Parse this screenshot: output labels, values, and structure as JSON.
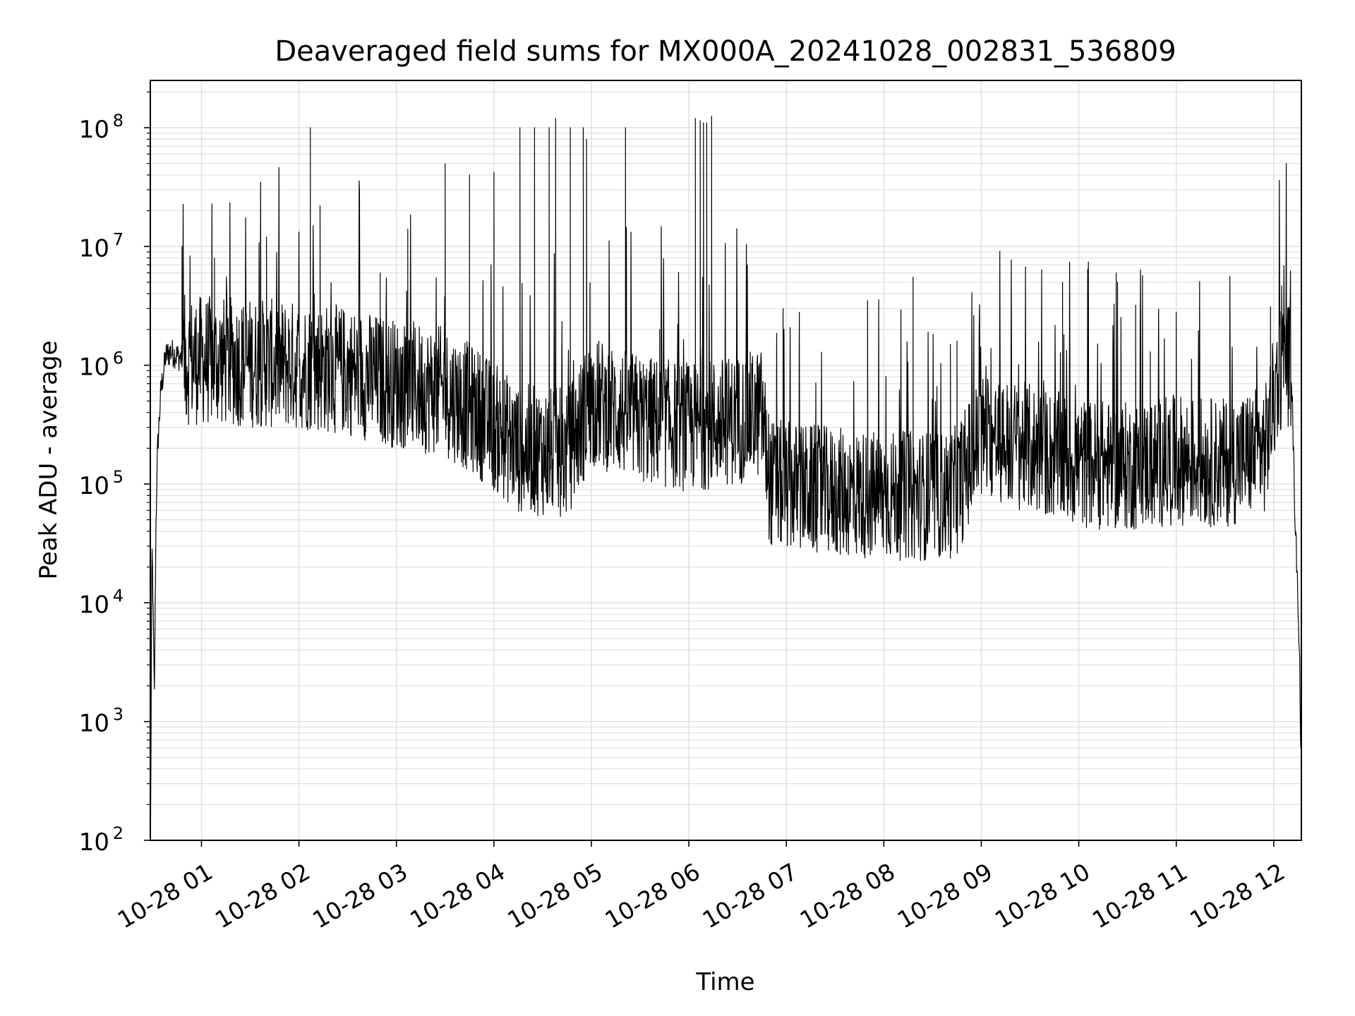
{
  "chart_data": {
    "type": "line",
    "title": "Deaveraged field sums for MX000A_20241028_002831_536809",
    "xlabel": "Time",
    "ylabel": "Peak ADU - average",
    "yscale": "log",
    "ylim": [
      100,
      250000000
    ],
    "xlim": [
      "2024-10-28T00:28:31",
      "2024-10-28T12:17:00"
    ],
    "grid": true,
    "line_color": "#000000",
    "x_ticks": [
      {
        "t": "2024-10-28T01:00:00",
        "label": "10-28 01"
      },
      {
        "t": "2024-10-28T02:00:00",
        "label": "10-28 02"
      },
      {
        "t": "2024-10-28T03:00:00",
        "label": "10-28 03"
      },
      {
        "t": "2024-10-28T04:00:00",
        "label": "10-28 04"
      },
      {
        "t": "2024-10-28T05:00:00",
        "label": "10-28 05"
      },
      {
        "t": "2024-10-28T06:00:00",
        "label": "10-28 06"
      },
      {
        "t": "2024-10-28T07:00:00",
        "label": "10-28 07"
      },
      {
        "t": "2024-10-28T08:00:00",
        "label": "10-28 08"
      },
      {
        "t": "2024-10-28T09:00:00",
        "label": "10-28 09"
      },
      {
        "t": "2024-10-28T10:00:00",
        "label": "10-28 10"
      },
      {
        "t": "2024-10-28T11:00:00",
        "label": "10-28 11"
      },
      {
        "t": "2024-10-28T12:00:00",
        "label": "10-28 12"
      }
    ],
    "y_ticks": [
      {
        "value": 100,
        "base": "10",
        "exp": "2"
      },
      {
        "value": 1000,
        "base": "10",
        "exp": "3"
      },
      {
        "value": 10000,
        "base": "10",
        "exp": "4"
      },
      {
        "value": 100000,
        "base": "10",
        "exp": "5"
      },
      {
        "value": 1000000,
        "base": "10",
        "exp": "6"
      },
      {
        "value": 10000000,
        "base": "10",
        "exp": "7"
      },
      {
        "value": 100000000,
        "base": "10",
        "exp": "8"
      }
    ],
    "series": [
      {
        "style": "noisy-trace",
        "x": [
          "2024-10-28T00:28:40",
          "2024-10-28T00:29:30",
          "2024-10-28T00:30:00",
          "2024-10-28T00:31:00",
          "2024-10-28T00:32:00",
          "2024-10-28T00:33:00",
          "2024-10-28T00:35:00",
          "2024-10-28T00:38:00",
          "2024-10-28T00:41:00",
          "2024-10-28T00:45:00",
          "2024-10-28T00:50:00",
          "2024-10-28T01:00:00",
          "2024-10-28T01:30:00",
          "2024-10-28T02:00:00",
          "2024-10-28T02:30:00",
          "2024-10-28T03:00:00",
          "2024-10-28T03:30:00",
          "2024-10-28T03:50:00",
          "2024-10-28T04:15:00",
          "2024-10-28T04:45:00",
          "2024-10-28T05:00:00",
          "2024-10-28T05:30:00",
          "2024-10-28T06:00:00",
          "2024-10-28T06:30:00",
          "2024-10-28T06:45:00",
          "2024-10-28T06:50:00",
          "2024-10-28T07:30:00",
          "2024-10-28T08:00:00",
          "2024-10-28T08:40:00",
          "2024-10-28T08:45:00",
          "2024-10-28T09:00:00",
          "2024-10-28T09:30:00",
          "2024-10-28T10:00:00",
          "2024-10-28T10:30:00",
          "2024-10-28T11:00:00",
          "2024-10-28T11:30:00",
          "2024-10-28T11:55:00",
          "2024-10-28T12:03:00",
          "2024-10-28T12:08:00",
          "2024-10-28T12:11:00",
          "2024-10-28T12:13:00",
          "2024-10-28T12:15:00",
          "2024-10-28T12:16:00",
          "2024-10-28T12:16:40"
        ],
        "y": [
          100,
          30000,
          15000,
          1500,
          50000,
          200000,
          600000,
          1200000,
          1300000,
          1200000,
          1100000,
          1100000,
          1050000,
          1000000,
          900000,
          700000,
          600000,
          400000,
          200000,
          180000,
          500000,
          350000,
          300000,
          350000,
          400000,
          100000,
          85000,
          80000,
          80000,
          90000,
          250000,
          200000,
          150000,
          140000,
          160000,
          150000,
          200000,
          900000,
          1200000,
          800000,
          60000,
          10000,
          3000,
          500
        ],
        "spikes": [
          {
            "x": "2024-10-28T00:48:00",
            "y": 10000000
          },
          {
            "x": "2024-10-28T01:08:00",
            "y": 8000000
          },
          {
            "x": "2024-10-28T01:40:00",
            "y": 12000000
          },
          {
            "x": "2024-10-28T02:07:00",
            "y": 100000000
          },
          {
            "x": "2024-10-28T02:13:00",
            "y": 22000000
          },
          {
            "x": "2024-10-28T02:50:00",
            "y": 6000000
          },
          {
            "x": "2024-10-28T03:07:00",
            "y": 14000000
          },
          {
            "x": "2024-10-28T03:30:00",
            "y": 50000000
          },
          {
            "x": "2024-10-28T03:45:00",
            "y": 40000000
          },
          {
            "x": "2024-10-28T04:00:00",
            "y": 42000000
          },
          {
            "x": "2024-10-28T04:16:00",
            "y": 100000000
          },
          {
            "x": "2024-10-28T04:25:00",
            "y": 100000000
          },
          {
            "x": "2024-10-28T04:34:00",
            "y": 100000000
          },
          {
            "x": "2024-10-28T04:38:00",
            "y": 120000000
          },
          {
            "x": "2024-10-28T04:47:00",
            "y": 100000000
          },
          {
            "x": "2024-10-28T04:55:00",
            "y": 100000000
          },
          {
            "x": "2024-10-28T04:57:00",
            "y": 80000000
          },
          {
            "x": "2024-10-28T05:21:00",
            "y": 100000000
          },
          {
            "x": "2024-10-28T05:42:00",
            "y": 2000000
          },
          {
            "x": "2024-10-28T06:04:00",
            "y": 120000000
          },
          {
            "x": "2024-10-28T06:07:00",
            "y": 115000000
          },
          {
            "x": "2024-10-28T06:09:00",
            "y": 110000000
          },
          {
            "x": "2024-10-28T06:11:00",
            "y": 110000000
          },
          {
            "x": "2024-10-28T06:14:00",
            "y": 125000000
          },
          {
            "x": "2024-10-28T06:36:00",
            "y": 7000000
          },
          {
            "x": "2024-10-28T06:58:00",
            "y": 3000000
          },
          {
            "x": "2024-10-28T07:50:00",
            "y": 3500000
          },
          {
            "x": "2024-10-28T08:18:00",
            "y": 5500000
          },
          {
            "x": "2024-10-28T08:41:00",
            "y": 1500000
          },
          {
            "x": "2024-10-28T08:45:00",
            "y": 1600000
          },
          {
            "x": "2024-10-28T09:50:00",
            "y": 5000000
          },
          {
            "x": "2024-10-28T10:23:00",
            "y": 6000000
          },
          {
            "x": "2024-10-28T10:35:00",
            "y": 3200000
          },
          {
            "x": "2024-10-28T10:44:00",
            "y": 1300000
          },
          {
            "x": "2024-10-28T11:00:00",
            "y": 2800000
          },
          {
            "x": "2024-10-28T11:58:00",
            "y": 3100000
          }
        ]
      }
    ]
  }
}
